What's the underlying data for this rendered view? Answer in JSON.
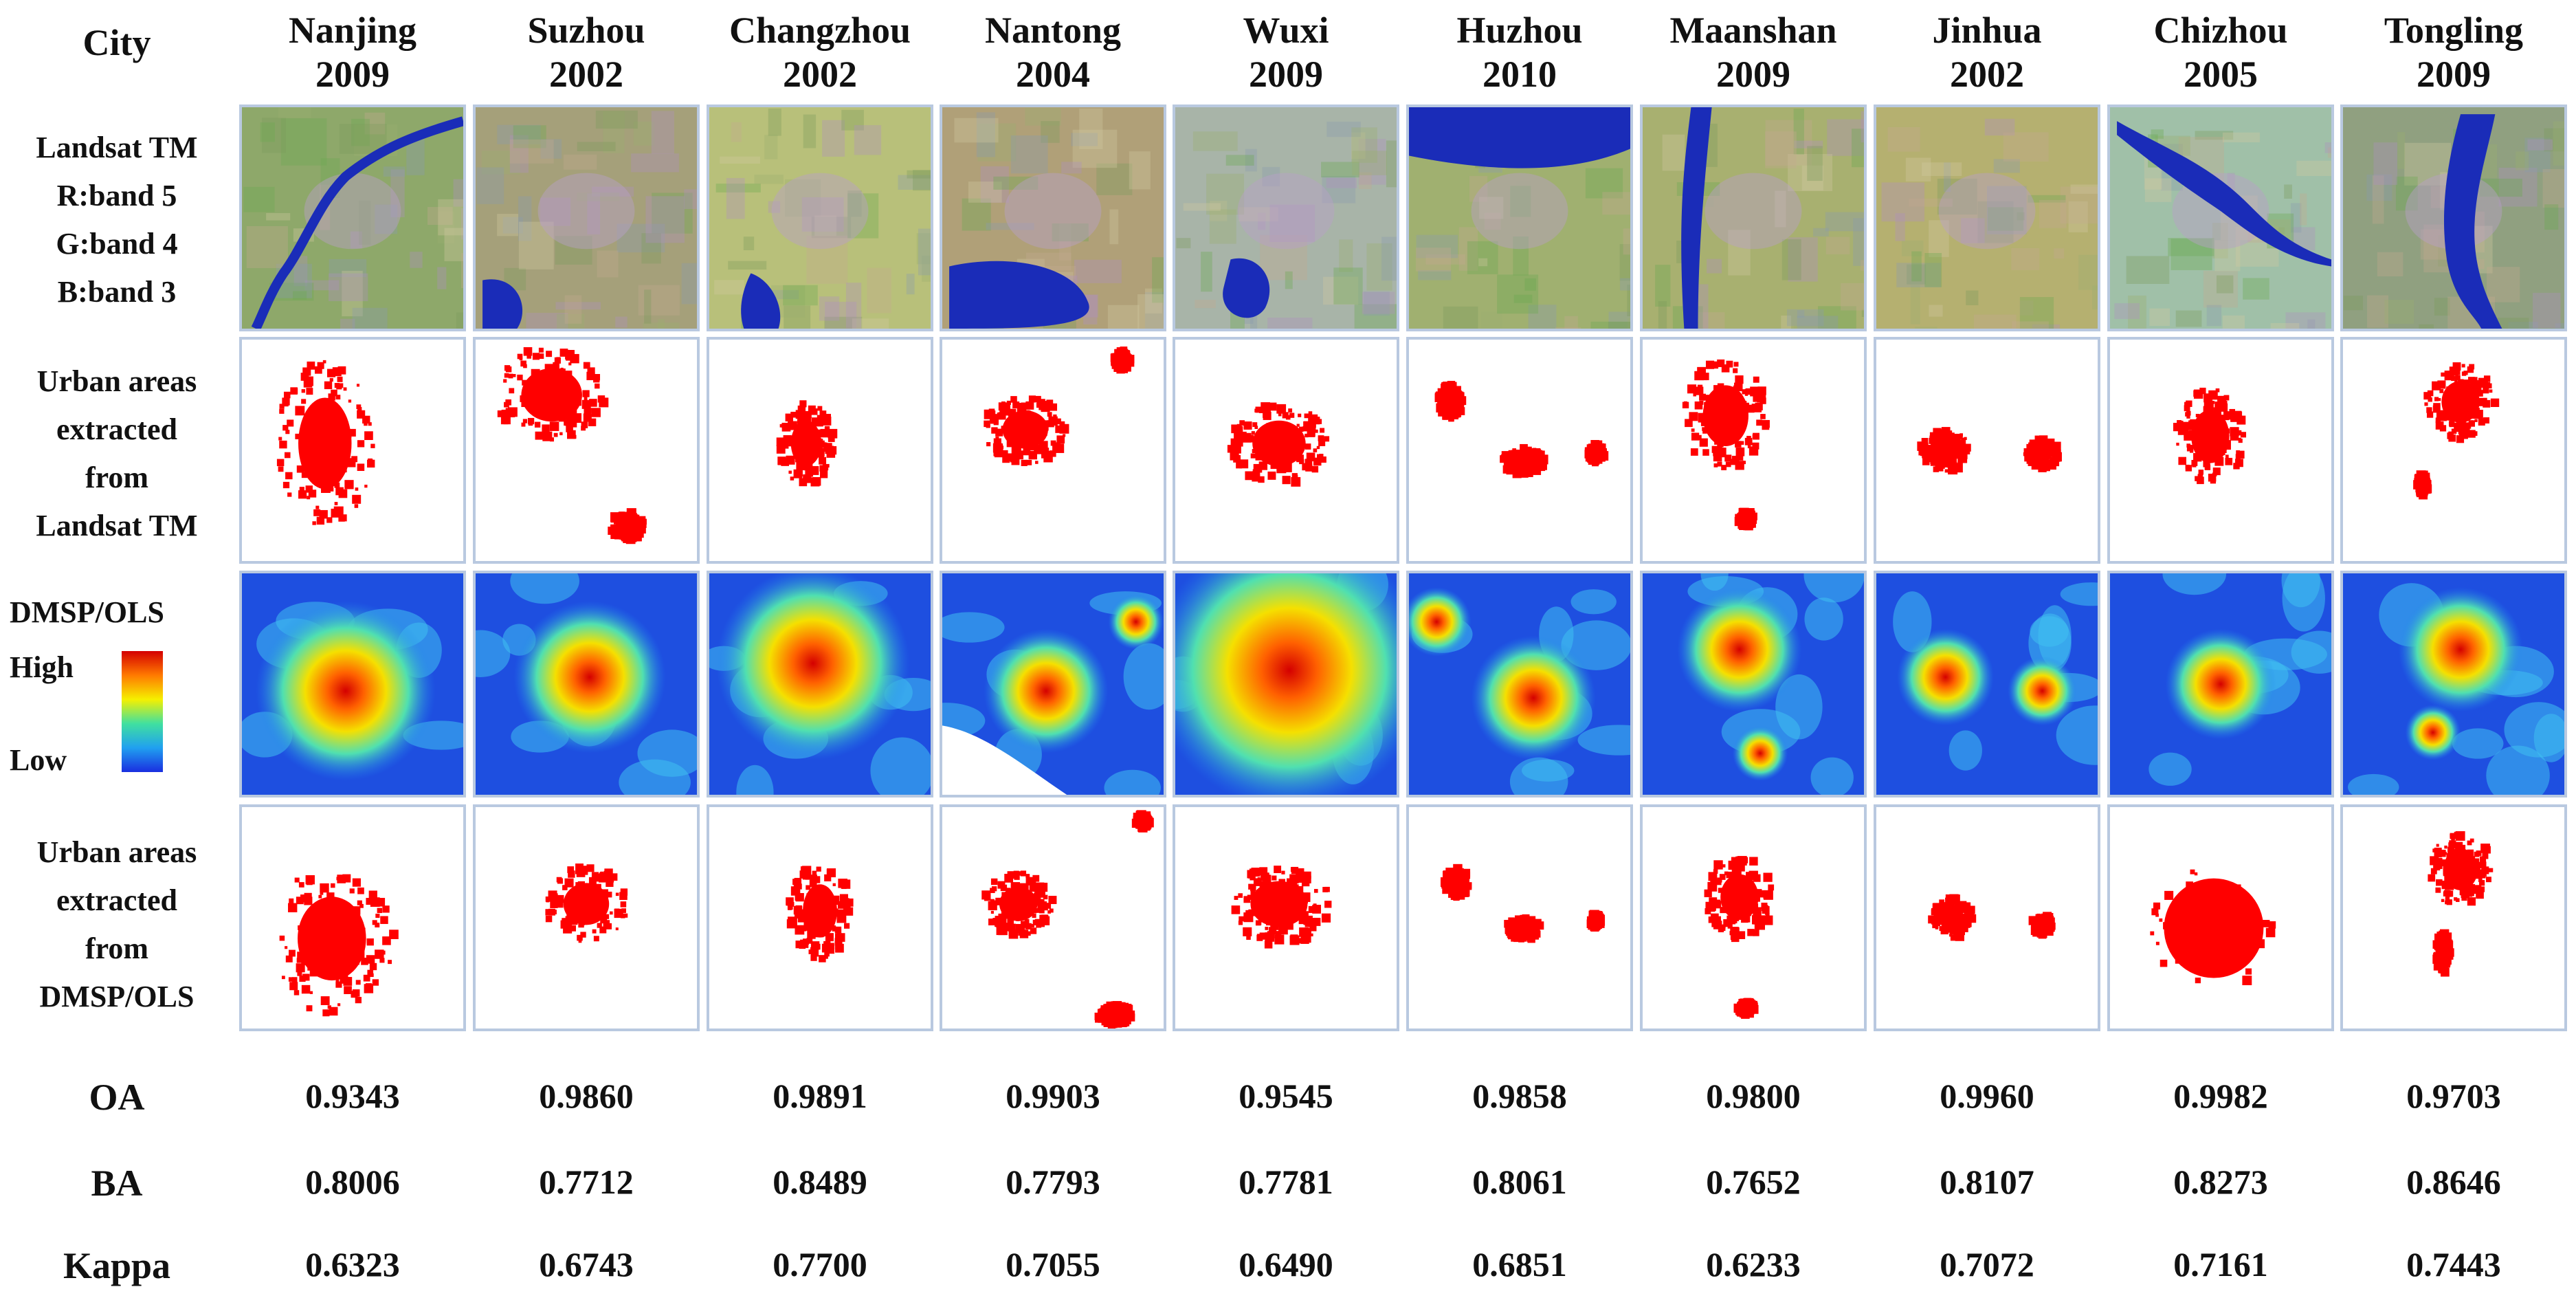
{
  "header": {
    "city_label": "City",
    "cities": [
      {
        "name": "Nanjing",
        "year": "2009"
      },
      {
        "name": "Suzhou",
        "year": "2002"
      },
      {
        "name": "Changzhou",
        "year": "2002"
      },
      {
        "name": "Nantong",
        "year": "2004"
      },
      {
        "name": "Wuxi",
        "year": "2009"
      },
      {
        "name": "Huzhou",
        "year": "2010"
      },
      {
        "name": "Maanshan",
        "year": "2009"
      },
      {
        "name": "Jinhua",
        "year": "2002"
      },
      {
        "name": "Chizhou",
        "year": "2005"
      },
      {
        "name": "Tongling",
        "year": "2009"
      }
    ]
  },
  "rows": {
    "landsat_label": [
      "Landsat TM",
      "R:band 5",
      "G:band 4",
      "B:band 3"
    ],
    "urban_tm_label": [
      "Urban areas",
      "extracted",
      "from",
      "Landsat TM"
    ],
    "dmsp_label": "DMSP/OLS",
    "dmsp_high": "High",
    "dmsp_low": "Low",
    "urban_dmsp_label": [
      "Urban areas",
      "extracted",
      "from",
      "DMSP/OLS"
    ]
  },
  "metrics": {
    "labels": {
      "oa": "OA",
      "ba": "BA",
      "kappa": "Kappa"
    },
    "oa": [
      "0.9343",
      "0.9860",
      "0.9891",
      "0.9903",
      "0.9545",
      "0.9858",
      "0.9800",
      "0.9960",
      "0.9982",
      "0.9703"
    ],
    "ba": [
      "0.8006",
      "0.7712",
      "0.8489",
      "0.7793",
      "0.7781",
      "0.8061",
      "0.7652",
      "0.8107",
      "0.8273",
      "0.8646"
    ],
    "kappa": [
      "0.6323",
      "0.6743",
      "0.7700",
      "0.7055",
      "0.6490",
      "0.6851",
      "0.6233",
      "0.7072",
      "0.7161",
      "0.7443"
    ]
  },
  "colors": {
    "urban_red": "#ff0000",
    "cell_border": "#b9c9e0",
    "landsat_base": "#a8b878",
    "water_blue": "#1a2cb8",
    "heat_low": "#1e4fe0",
    "heat_high": "#d40000"
  }
}
